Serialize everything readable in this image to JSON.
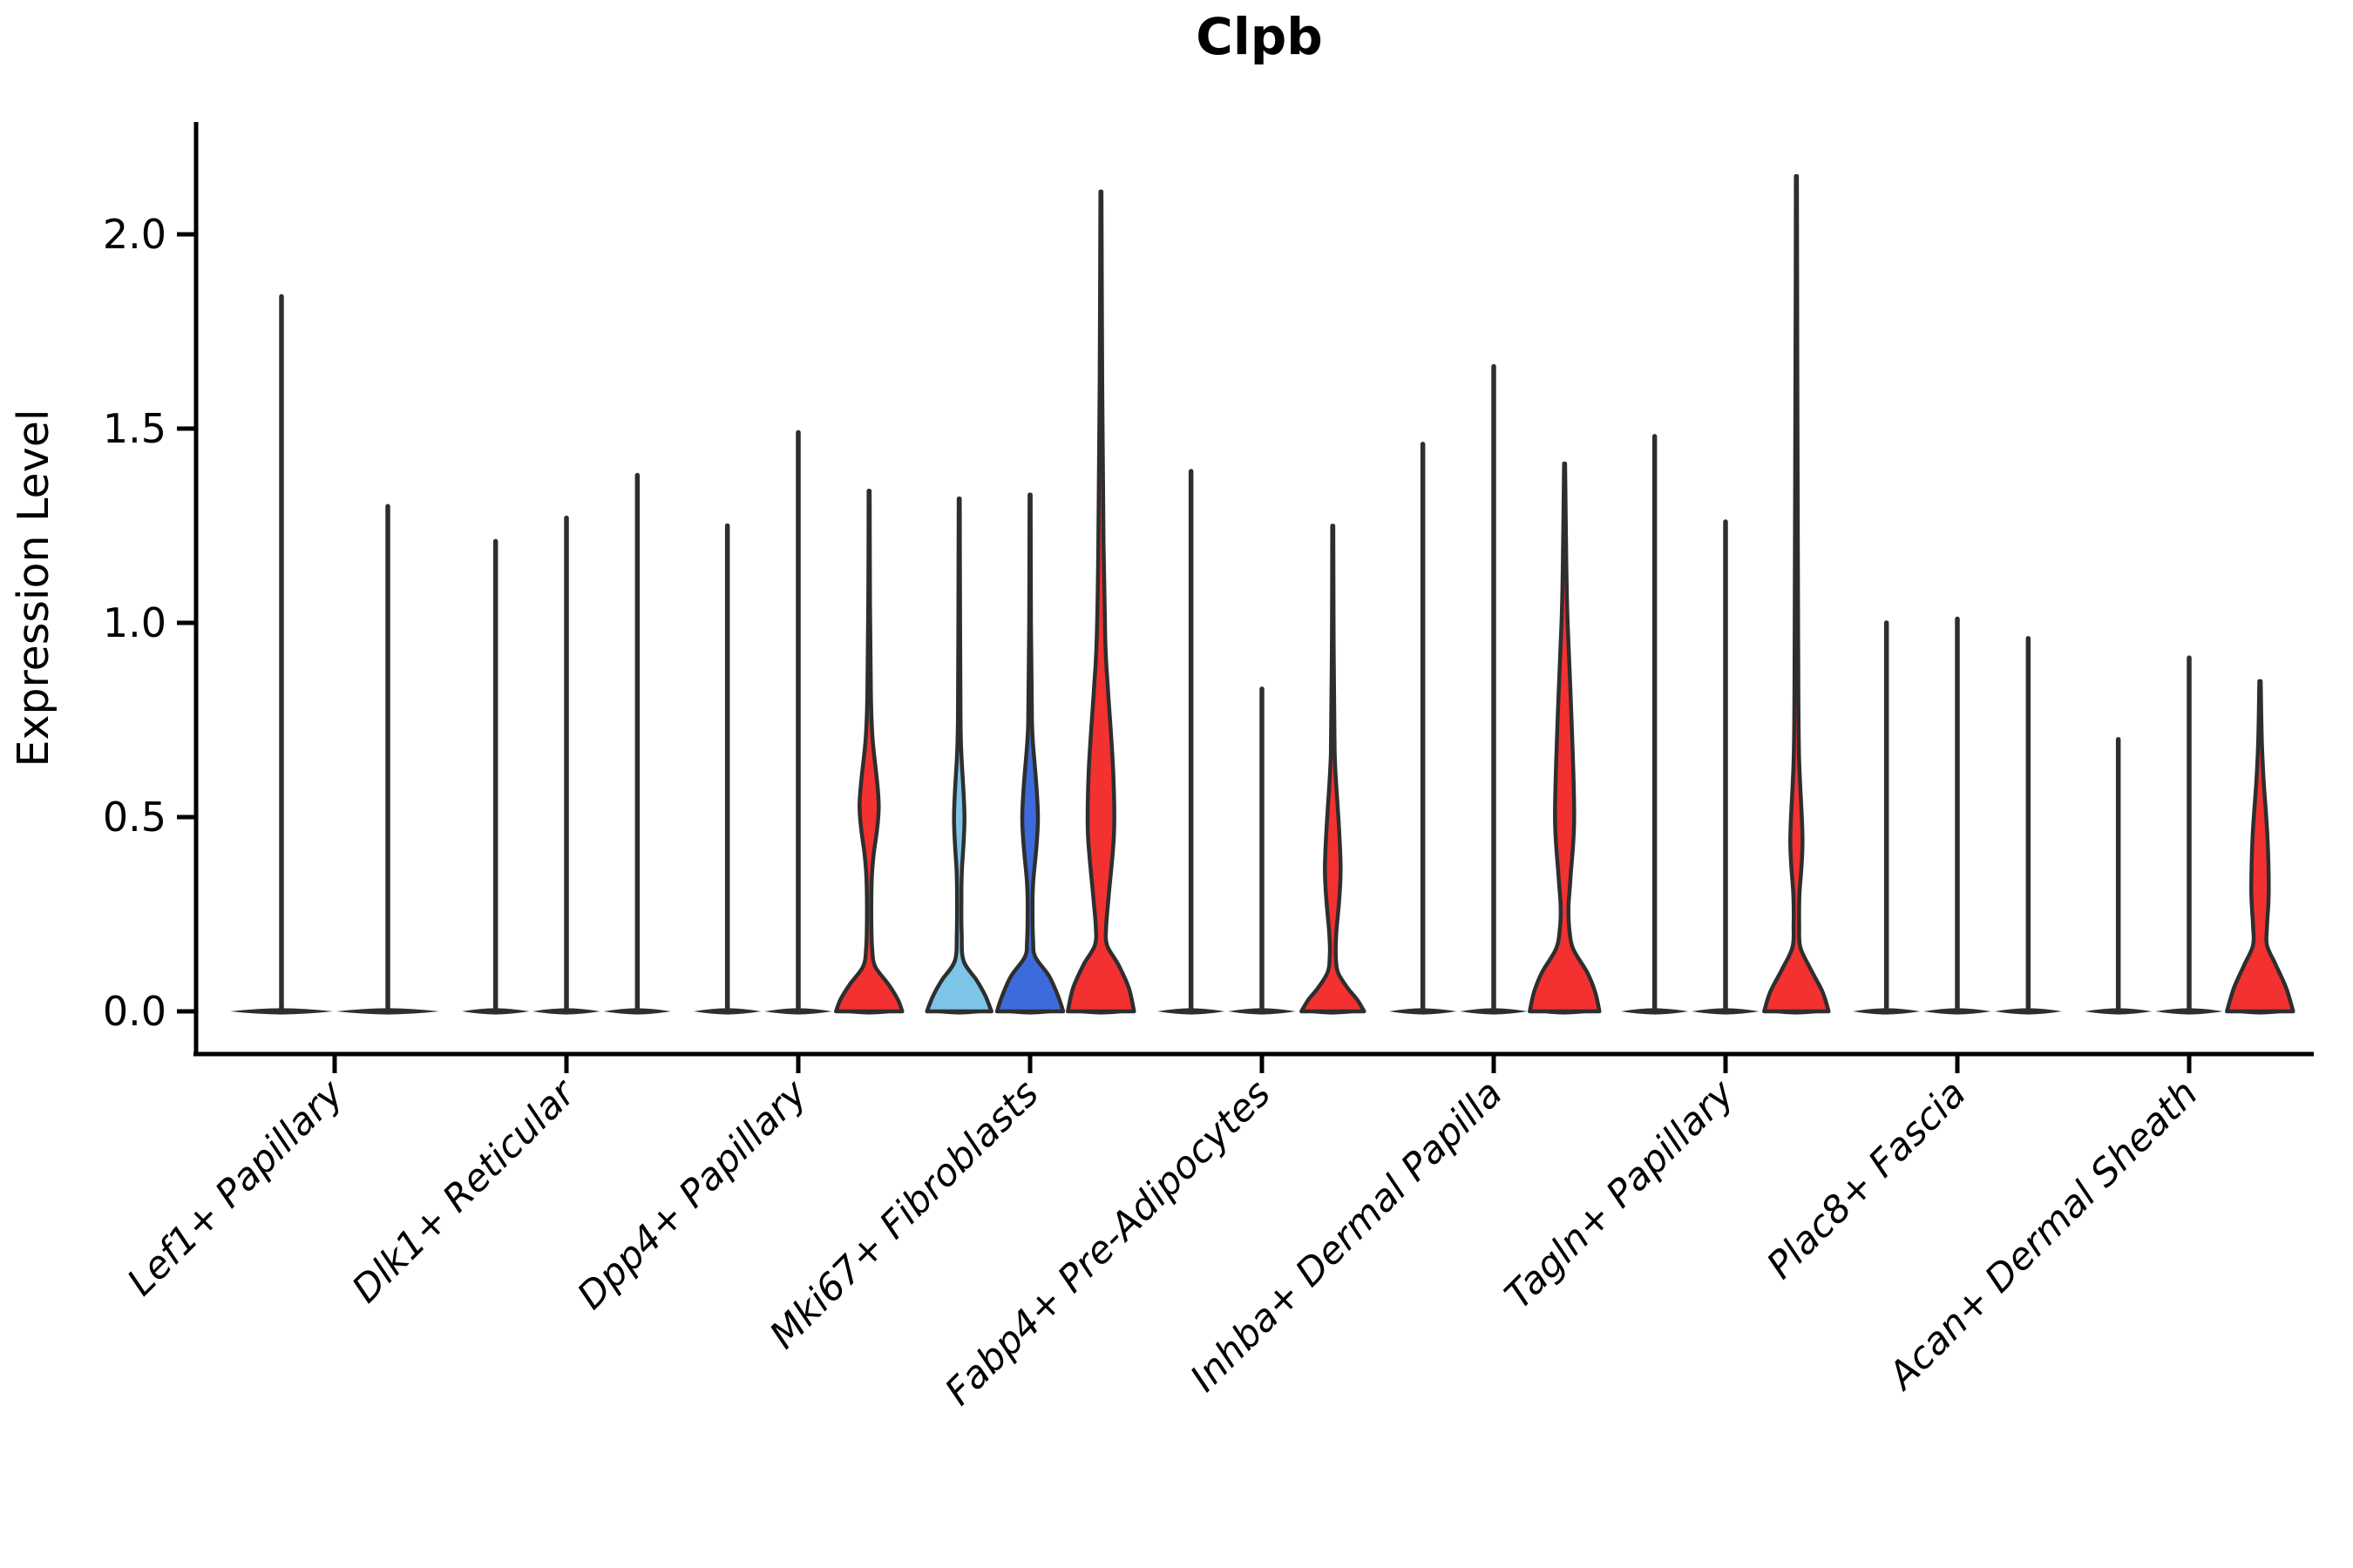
{
  "chart_data": {
    "type": "violin",
    "title": "Clpb",
    "ylabel": "Expression Level",
    "xlabel": "",
    "ylim": [
      0,
      2.29
    ],
    "y_ticks": [
      {
        "value": 0.0,
        "label": "0.0"
      },
      {
        "value": 0.5,
        "label": "0.5"
      },
      {
        "value": 1.0,
        "label": "1.0"
      },
      {
        "value": 1.5,
        "label": "1.5"
      },
      {
        "value": 2.0,
        "label": "2.0"
      }
    ],
    "grid": false,
    "legend": "none",
    "colors": {
      "red": "#F23130",
      "light_blue": "#7CC5E9",
      "blue": "#3E6BDB",
      "white": "#FFFFFF",
      "outline": "#2E2E2E",
      "axis": "#000000"
    },
    "groups": [
      {
        "label": "Lef1+ Papillary",
        "violins": [
          {
            "fill": "white",
            "max": 1.84
          },
          {
            "fill": "white",
            "max": 1.3
          }
        ]
      },
      {
        "label": "Dlk1+ Reticular",
        "violins": [
          {
            "fill": "white",
            "max": 1.21
          },
          {
            "fill": "white",
            "max": 1.27
          },
          {
            "fill": "white",
            "max": 1.38
          }
        ]
      },
      {
        "label": "Dpp4+ Papillary",
        "violins": [
          {
            "fill": "white",
            "max": 1.25
          },
          {
            "fill": "white",
            "max": 1.49
          },
          {
            "fill": "red",
            "max": 1.34,
            "profile": [
              [
                1.34,
                0.6
              ],
              [
                1.05,
                1
              ],
              [
                0.82,
                2
              ],
              [
                0.7,
                4
              ],
              [
                0.53,
                11
              ],
              [
                0.4,
                5
              ],
              [
                0.34,
                3
              ],
              [
                0.24,
                2.5
              ],
              [
                0.16,
                3.5
              ],
              [
                0.115,
                7
              ],
              [
                0.07,
                22
              ],
              [
                0.03,
                33
              ],
              [
                0,
                38
              ]
            ]
          }
        ]
      },
      {
        "label": "Mki67+ Fibroblasts",
        "violins": [
          {
            "fill": "light_blue",
            "max": 1.32,
            "profile": [
              [
                1.32,
                0.6
              ],
              [
                1.0,
                1
              ],
              [
                0.75,
                1.5
              ],
              [
                0.66,
                2.5
              ],
              [
                0.5,
                6
              ],
              [
                0.36,
                3
              ],
              [
                0.29,
                2.5
              ],
              [
                0.2,
                2.8
              ],
              [
                0.13,
                5
              ],
              [
                0.08,
                20
              ],
              [
                0.04,
                30
              ],
              [
                0,
                37
              ]
            ]
          },
          {
            "fill": "blue",
            "max": 1.33,
            "profile": [
              [
                1.33,
                0.6
              ],
              [
                1.0,
                1
              ],
              [
                0.78,
                2
              ],
              [
                0.7,
                3
              ],
              [
                0.5,
                9
              ],
              [
                0.33,
                3.5
              ],
              [
                0.26,
                2.8
              ],
              [
                0.18,
                3.5
              ],
              [
                0.14,
                6
              ],
              [
                0.09,
                22
              ],
              [
                0.04,
                32
              ],
              [
                0,
                38
              ]
            ]
          },
          {
            "fill": "red",
            "max": 2.11,
            "profile": [
              [
                2.11,
                0.6
              ],
              [
                1.6,
                1.5
              ],
              [
                1.2,
                3
              ],
              [
                0.95,
                5
              ],
              [
                0.83,
                8
              ],
              [
                0.62,
                14
              ],
              [
                0.46,
                15
              ],
              [
                0.3,
                9
              ],
              [
                0.22,
                6
              ],
              [
                0.17,
                7
              ],
              [
                0.12,
                20
              ],
              [
                0.06,
                32
              ],
              [
                0,
                38
              ]
            ]
          }
        ]
      },
      {
        "label": "Fabp4+ Pre-Adipocytes",
        "violins": [
          {
            "fill": "white",
            "max": 1.39
          },
          {
            "fill": "white",
            "max": 0.83
          },
          {
            "fill": "red",
            "max": 1.25,
            "profile": [
              [
                1.25,
                0.6
              ],
              [
                0.95,
                1
              ],
              [
                0.7,
                2
              ],
              [
                0.62,
                3
              ],
              [
                0.37,
                9
              ],
              [
                0.2,
                4
              ],
              [
                0.14,
                3.5
              ],
              [
                0.1,
                6
              ],
              [
                0.06,
                17
              ],
              [
                0.03,
                28
              ],
              [
                0,
                36
              ]
            ]
          }
        ]
      },
      {
        "label": "Inhba+ Dermal Papilla",
        "violins": [
          {
            "fill": "white",
            "max": 1.46
          },
          {
            "fill": "white",
            "max": 1.66
          },
          {
            "fill": "red",
            "max": 1.41,
            "profile": [
              [
                1.41,
                0.6
              ],
              [
                1.15,
                2
              ],
              [
                1.0,
                3.5
              ],
              [
                0.75,
                8
              ],
              [
                0.5,
                11
              ],
              [
                0.35,
                7
              ],
              [
                0.27,
                4.5
              ],
              [
                0.21,
                5.5
              ],
              [
                0.16,
                10
              ],
              [
                0.1,
                26
              ],
              [
                0.05,
                35
              ],
              [
                0,
                40
              ]
            ]
          }
        ]
      },
      {
        "label": "Tagln+ Papillary",
        "violins": [
          {
            "fill": "white",
            "max": 1.48
          },
          {
            "fill": "white",
            "max": 1.26
          },
          {
            "fill": "red",
            "max": 2.15,
            "profile": [
              [
                2.15,
                0.6
              ],
              [
                1.7,
                1
              ],
              [
                1.3,
                1.5
              ],
              [
                0.95,
                2
              ],
              [
                0.66,
                3
              ],
              [
                0.44,
                7
              ],
              [
                0.3,
                3.5
              ],
              [
                0.22,
                3.2
              ],
              [
                0.165,
                4.5
              ],
              [
                0.11,
                16
              ],
              [
                0.05,
                30
              ],
              [
                0,
                37
              ]
            ]
          }
        ]
      },
      {
        "label": "Plac8+ Fascia",
        "violins": [
          {
            "fill": "white",
            "max": 1.0
          },
          {
            "fill": "white",
            "max": 1.01
          },
          {
            "fill": "white",
            "max": 0.96
          }
        ]
      },
      {
        "label": "Acan+ Dermal Sheath",
        "violins": [
          {
            "fill": "white",
            "max": 0.7
          },
          {
            "fill": "white",
            "max": 0.91
          },
          {
            "fill": "red",
            "max": 0.85,
            "profile": [
              [
                0.85,
                0.8
              ],
              [
                0.7,
                2
              ],
              [
                0.6,
                4
              ],
              [
                0.45,
                8.5
              ],
              [
                0.31,
                10
              ],
              [
                0.22,
                8
              ],
              [
                0.17,
                8
              ],
              [
                0.12,
                18
              ],
              [
                0.06,
                30
              ],
              [
                0,
                38
              ]
            ]
          }
        ]
      }
    ]
  }
}
